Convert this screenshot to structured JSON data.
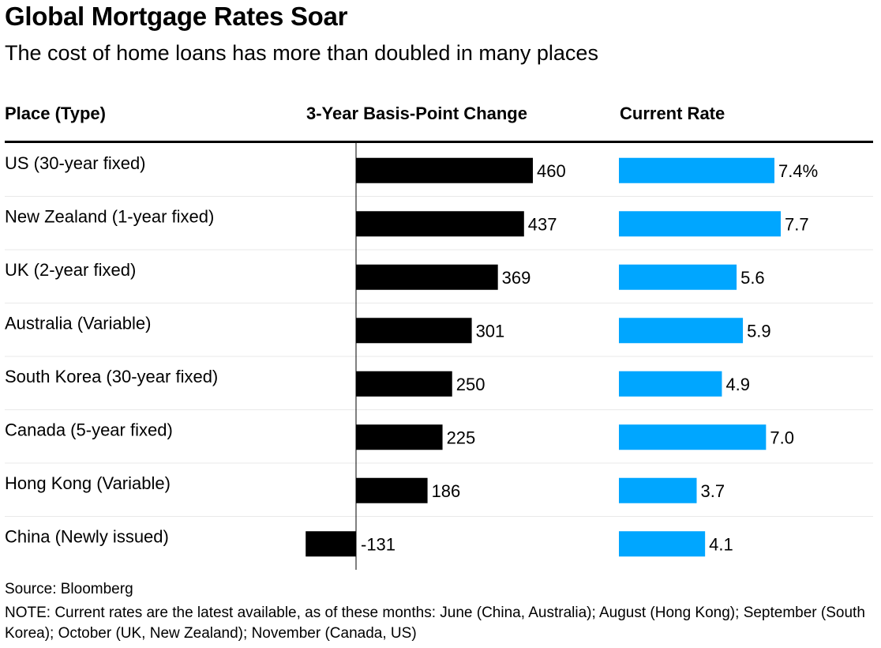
{
  "header": {
    "title": "Global Mortgage Rates Soar",
    "subtitle": "The cost of home loans has more than doubled in many places"
  },
  "columns": {
    "place": "Place (Type)",
    "bp_change": "3-Year Basis-Point Change",
    "current_rate": "Current Rate"
  },
  "footer": {
    "source": "Source: Bloomberg",
    "note": "NOTE: Current rates are the latest available, as of these months: June (China, Australia); August (Hong Kong); September (South Korea); October (UK, New Zealand); November (Canada, US)"
  },
  "colors": {
    "bp_bar": "#000000",
    "rate_bar": "#00a6ff",
    "row_divider": "#e9e9e9"
  },
  "chart_data": {
    "type": "bar",
    "categories": [
      "US (30-year fixed)",
      "New Zealand (1-year fixed)",
      "UK (2-year fixed)",
      "Australia (Variable)",
      "South Korea (30-year fixed)",
      "Canada (5-year fixed)",
      "Hong Kong (Variable)",
      "China (Newly issued)"
    ],
    "series": [
      {
        "name": "3-Year Basis-Point Change",
        "values": [
          460,
          437,
          369,
          301,
          250,
          225,
          186,
          -131
        ],
        "labels": [
          "460",
          "437",
          "369",
          "301",
          "250",
          "225",
          "186",
          "-131"
        ]
      },
      {
        "name": "Current Rate",
        "values": [
          7.4,
          7.7,
          5.6,
          5.9,
          4.9,
          7.0,
          3.7,
          4.1
        ],
        "labels": [
          "7.4%",
          "7.7",
          "5.6",
          "5.9",
          "4.9",
          "7.0",
          "3.7",
          "4.1"
        ]
      }
    ],
    "grid": false,
    "legend": "none"
  }
}
